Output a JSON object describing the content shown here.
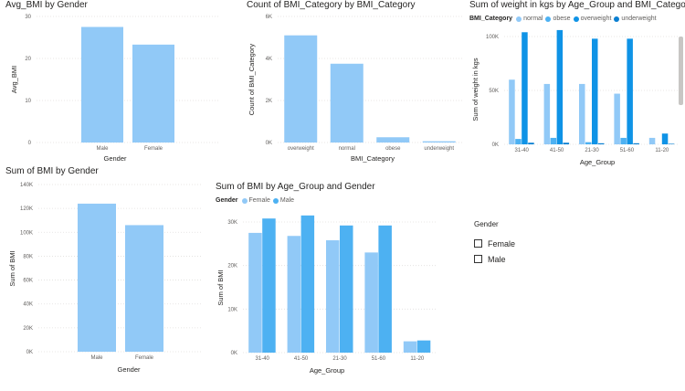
{
  "charts": {
    "c1": {
      "title": "Avg_BMI by Gender"
    },
    "c2": {
      "title": "Count of BMI_Category by BMI_Category"
    },
    "c3": {
      "title": "Sum of weight in kgs by Age_Group and BMI_Category",
      "legend_title": "BMI_Category",
      "legend": [
        "normal",
        "obese",
        "overweight",
        "underweight"
      ]
    },
    "c4": {
      "title": "Sum of BMI by Gender"
    },
    "c5": {
      "title": "Sum of BMI by Age_Group and Gender",
      "legend_title": "Gender",
      "legend": [
        "Female",
        "Male"
      ]
    }
  },
  "slicer": {
    "title": "Gender",
    "items": [
      "Female",
      "Male"
    ]
  },
  "colors": {
    "light": "#91c9f7",
    "mid": "#4db1f2",
    "dark": "#0f93e6",
    "darker": "#0a7fd1",
    "faint": "#b9dcfa"
  },
  "chart_data": [
    {
      "type": "bar",
      "title": "Avg_BMI by Gender",
      "xlabel": "Gender",
      "ylabel": "Avg_BMI",
      "categories": [
        "Male",
        "Female"
      ],
      "values": [
        27.5,
        23.3
      ],
      "ylim": [
        0,
        30
      ],
      "yticks": [
        0,
        10,
        20,
        30
      ],
      "ytick_labels": [
        "0",
        "10",
        "20",
        "30"
      ],
      "grid": true
    },
    {
      "type": "bar",
      "title": "Count of BMI_Category by BMI_Category",
      "xlabel": "BMI_Category",
      "ylabel": "Count of BMI_Category",
      "categories": [
        "overweight",
        "normal",
        "obese",
        "underweight"
      ],
      "values": [
        5100,
        3750,
        250,
        60
      ],
      "ylim": [
        0,
        6000
      ],
      "yticks": [
        0,
        2000,
        4000,
        6000
      ],
      "ytick_labels": [
        "0K",
        "2K",
        "4K",
        "6K"
      ],
      "grid": true
    },
    {
      "type": "bar",
      "title": "Sum of weight in kgs by Age_Group and BMI_Category",
      "xlabel": "Age_Group",
      "ylabel": "Sum of weight in kgs",
      "categories": [
        "31-40",
        "41-50",
        "21-30",
        "51-60",
        "11-20"
      ],
      "series": [
        {
          "name": "normal",
          "values": [
            60000,
            56000,
            56000,
            47000,
            6000
          ]
        },
        {
          "name": "obese",
          "values": [
            5000,
            6000,
            2000,
            6000,
            0
          ]
        },
        {
          "name": "overweight",
          "values": [
            104000,
            106000,
            98000,
            98000,
            10000
          ]
        },
        {
          "name": "underweight",
          "values": [
            1500,
            1500,
            1000,
            1000,
            500
          ]
        }
      ],
      "ylim": [
        0,
        100000
      ],
      "yticks": [
        0,
        50000,
        100000
      ],
      "ytick_labels": [
        "0K",
        "50K",
        "100K"
      ],
      "grid": true,
      "legend": "top-left"
    },
    {
      "type": "bar",
      "title": "Sum of BMI by Gender",
      "xlabel": "Gender",
      "ylabel": "Sum of BMI",
      "categories": [
        "Male",
        "Female"
      ],
      "values": [
        124000,
        106000
      ],
      "ylim": [
        0,
        140000
      ],
      "yticks": [
        0,
        20000,
        40000,
        60000,
        80000,
        100000,
        120000,
        140000
      ],
      "ytick_labels": [
        "0K",
        "20K",
        "40K",
        "60K",
        "80K",
        "100K",
        "120K",
        "140K"
      ],
      "grid": true
    },
    {
      "type": "bar",
      "title": "Sum of BMI by Age_Group and Gender",
      "xlabel": "Age_Group",
      "ylabel": "Sum of BMI",
      "categories": [
        "31-40",
        "41-50",
        "21-30",
        "51-60",
        "11-20"
      ],
      "series": [
        {
          "name": "Female",
          "values": [
            27500,
            26800,
            25800,
            23000,
            2600
          ]
        },
        {
          "name": "Male",
          "values": [
            30800,
            31500,
            29200,
            29200,
            2800
          ]
        }
      ],
      "ylim": [
        0,
        30000
      ],
      "yticks": [
        0,
        10000,
        20000,
        30000
      ],
      "ytick_labels": [
        "0K",
        "10K",
        "20K",
        "30K"
      ],
      "grid": true,
      "legend": "top-left"
    }
  ]
}
